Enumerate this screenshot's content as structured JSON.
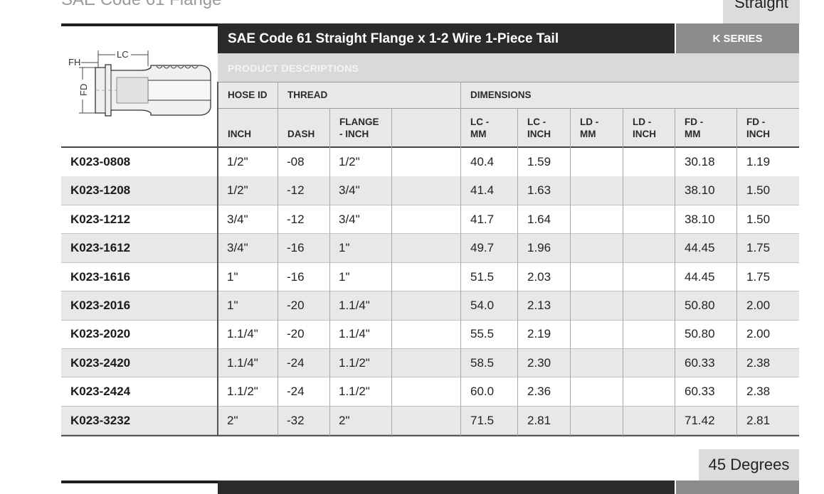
{
  "clipped_above": {
    "title": "SAE Code 61 Flange",
    "tab": "Straight"
  },
  "section": {
    "title": "SAE Code 61 Straight Flange x 1-2 Wire 1-Piece Tail",
    "series": "K SERIES",
    "descriptions_label": "PRODUCT DESCRIPTIONS"
  },
  "diagram": {
    "fh": "FH",
    "lc": "LC",
    "fd": "FD"
  },
  "headers": {
    "group": {
      "hose_id": "HOSE ID",
      "thread": "THREAD",
      "dimensions": "DIMENSIONS"
    },
    "columns": {
      "inch": "INCH",
      "dash": "DASH",
      "flange_1": "FLANGE",
      "flange_2": "- INCH",
      "lc_mm_1": "LC -",
      "lc_mm_2": "MM",
      "lc_in_1": "LC -",
      "lc_in_2": "INCH",
      "ld_mm_1": "LD -",
      "ld_mm_2": "MM",
      "ld_in_1": "LD -",
      "ld_in_2": "INCH",
      "fd_mm_1": "FD -",
      "fd_mm_2": "MM",
      "fd_in_1": "FD -",
      "fd_in_2": "INCH"
    }
  },
  "rows": [
    {
      "part": "K023-0808",
      "inch": "1/2\"",
      "dash": "-08",
      "flange": "1/2\"",
      "lc_mm": "40.4",
      "lc_in": "1.59",
      "ld_mm": "",
      "ld_in": "",
      "fd_mm": "30.18",
      "fd_in": "1.19"
    },
    {
      "part": "K023-1208",
      "inch": "1/2\"",
      "dash": "-12",
      "flange": "3/4\"",
      "lc_mm": "41.4",
      "lc_in": "1.63",
      "ld_mm": "",
      "ld_in": "",
      "fd_mm": "38.10",
      "fd_in": "1.50"
    },
    {
      "part": "K023-1212",
      "inch": "3/4\"",
      "dash": "-12",
      "flange": "3/4\"",
      "lc_mm": "41.7",
      "lc_in": "1.64",
      "ld_mm": "",
      "ld_in": "",
      "fd_mm": "38.10",
      "fd_in": "1.50"
    },
    {
      "part": "K023-1612",
      "inch": "3/4\"",
      "dash": "-16",
      "flange": "1\"",
      "lc_mm": "49.7",
      "lc_in": "1.96",
      "ld_mm": "",
      "ld_in": "",
      "fd_mm": "44.45",
      "fd_in": "1.75"
    },
    {
      "part": "K023-1616",
      "inch": "1\"",
      "dash": "-16",
      "flange": "1\"",
      "lc_mm": "51.5",
      "lc_in": "2.03",
      "ld_mm": "",
      "ld_in": "",
      "fd_mm": "44.45",
      "fd_in": "1.75"
    },
    {
      "part": "K023-2016",
      "inch": "1\"",
      "dash": "-20",
      "flange": "1.1/4\"",
      "lc_mm": "54.0",
      "lc_in": "2.13",
      "ld_mm": "",
      "ld_in": "",
      "fd_mm": "50.80",
      "fd_in": "2.00"
    },
    {
      "part": "K023-2020",
      "inch": "1.1/4\"",
      "dash": "-20",
      "flange": "1.1/4\"",
      "lc_mm": "55.5",
      "lc_in": "2.19",
      "ld_mm": "",
      "ld_in": "",
      "fd_mm": "50.80",
      "fd_in": "2.00"
    },
    {
      "part": "K023-2420",
      "inch": "1.1/4\"",
      "dash": "-24",
      "flange": "1.1/2\"",
      "lc_mm": "58.5",
      "lc_in": "2.30",
      "ld_mm": "",
      "ld_in": "",
      "fd_mm": "60.33",
      "fd_in": "2.38"
    },
    {
      "part": "K023-2424",
      "inch": "1.1/2\"",
      "dash": "-24",
      "flange": "1.1/2\"",
      "lc_mm": "60.0",
      "lc_in": "2.36",
      "ld_mm": "",
      "ld_in": "",
      "fd_mm": "60.33",
      "fd_in": "2.38"
    },
    {
      "part": "K023-3232",
      "inch": "2\"",
      "dash": "-32",
      "flange": "2\"",
      "lc_mm": "71.5",
      "lc_in": "2.81",
      "ld_mm": "",
      "ld_in": "",
      "fd_mm": "71.42",
      "fd_in": "2.81"
    }
  ],
  "next_section": {
    "tab": "45 Degrees"
  },
  "colors": {
    "title_bar": "#2b2b2b",
    "series_box": "#8c8c8c",
    "header_bg": "#e8e8e8",
    "alt_row": "#e8e8e8"
  }
}
